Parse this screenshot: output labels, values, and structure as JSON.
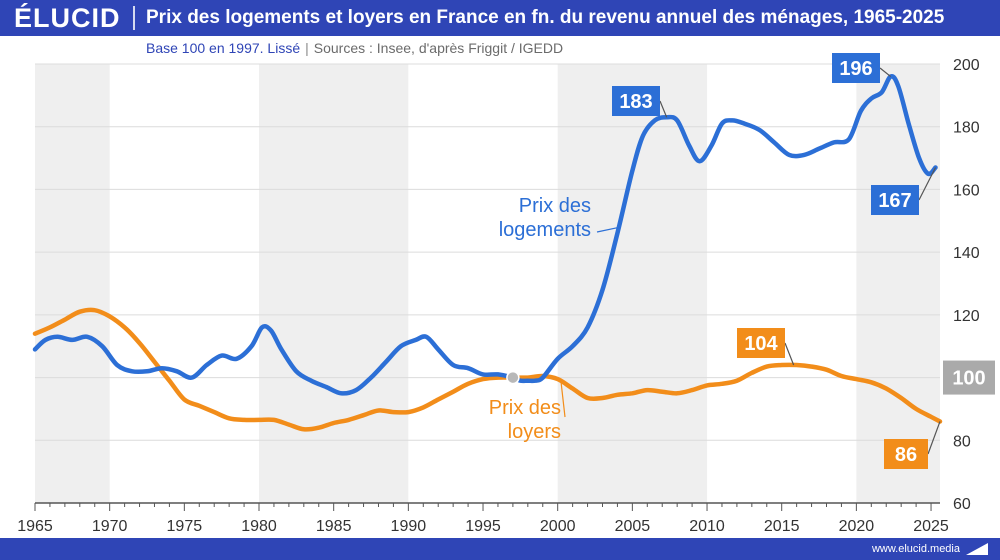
{
  "brand": {
    "logo": "ÉLUCID",
    "footer_url": "www.elucid.media"
  },
  "header": {
    "title": "Prix des logements et loyers en France en fn. du revenu annuel des ménages, 1965-2025",
    "subtitle_base": "Base 100 en 1997. Lissé",
    "subtitle_sep": "|",
    "subtitle_sources": "Sources : Insee, d'après Friggit / IGEDD"
  },
  "colors": {
    "header_bg": "#2f45b6",
    "logements": "#2c6fd6",
    "loyers": "#f28d1a",
    "reference": "#aaaaaa",
    "shade": "#efefef"
  },
  "chart_data": {
    "type": "line",
    "xlim": [
      1965,
      2025.6
    ],
    "ylim": [
      60,
      200
    ],
    "x_ticks": [
      "1965",
      "1970",
      "1975",
      "1980",
      "1985",
      "1990",
      "1995",
      "2000",
      "2005",
      "2010",
      "2015",
      "2020",
      "2025"
    ],
    "y_ticks": [
      "60",
      "80",
      "100",
      "120",
      "140",
      "160",
      "180",
      "200"
    ],
    "y_axis_position": "right",
    "shaded_bands": [
      [
        1965,
        1970
      ],
      [
        1980,
        1990
      ],
      [
        2000,
        2010
      ],
      [
        2020,
        2025.6
      ]
    ],
    "reference": {
      "x": 1997,
      "y": 100,
      "label": "100"
    },
    "series": [
      {
        "name": "Prix des logements",
        "label_lines": [
          "Prix des",
          "logements"
        ],
        "color": "#2c6fd6",
        "x": [
          1965,
          1965.7,
          1966.5,
          1967.5,
          1968.5,
          1969.5,
          1970.5,
          1971.5,
          1972.5,
          1973.5,
          1974.5,
          1975.5,
          1976.5,
          1977.5,
          1978.5,
          1979.5,
          1980.2,
          1980.8,
          1981.5,
          1982.5,
          1983.5,
          1984.5,
          1985.5,
          1986.5,
          1987.5,
          1988.5,
          1989.5,
          1990.5,
          1991.2,
          1992,
          1993,
          1994,
          1995,
          1996,
          1997,
          1997.5,
          1998,
          1998.5,
          1999,
          2000,
          2001,
          2002,
          2003,
          2004,
          2005,
          2005.7,
          2006.5,
          2007.3,
          2008,
          2008.8,
          2009.5,
          2010.3,
          2011,
          2011.7,
          2012.5,
          2013.5,
          2014.5,
          2015.5,
          2016.5,
          2017.5,
          2018.5,
          2019.5,
          2020.3,
          2021,
          2021.7,
          2022.3,
          2022.8,
          2023.5,
          2024.2,
          2024.8,
          2025.3
        ],
        "y": [
          109,
          112,
          113,
          112,
          113,
          110,
          104,
          102,
          102,
          103,
          102,
          100,
          104,
          107,
          106,
          110,
          116,
          115,
          109,
          102,
          99,
          97,
          95,
          96,
          100,
          105,
          110,
          112,
          113,
          109,
          104,
          103,
          101,
          101,
          100,
          99,
          99,
          99,
          100,
          106,
          110,
          116,
          128,
          146,
          166,
          177,
          182,
          183,
          182,
          174,
          169,
          174,
          181,
          182,
          181,
          179,
          175,
          171,
          171,
          173,
          175,
          176,
          185,
          189,
          191,
          196,
          193,
          181,
          170,
          165,
          167
        ]
      },
      {
        "name": "Prix des loyers",
        "label_lines": [
          "Prix des",
          "loyers"
        ],
        "color": "#f28d1a",
        "x": [
          1965,
          1966,
          1967,
          1968,
          1969,
          1970,
          1971,
          1972,
          1973,
          1974,
          1975,
          1976,
          1977,
          1978,
          1979,
          1980,
          1981,
          1982,
          1983,
          1984,
          1985,
          1986,
          1987,
          1988,
          1989,
          1990,
          1991,
          1992,
          1993,
          1994,
          1995,
          1996,
          1997,
          1998,
          1999,
          2000,
          2001,
          2002,
          2003,
          2004,
          2005,
          2006,
          2007,
          2008,
          2009,
          2010,
          2011,
          2012,
          2013,
          2014,
          2015,
          2016,
          2017,
          2018,
          2019,
          2020,
          2021,
          2022,
          2023,
          2024,
          2025,
          2025.6
        ],
        "y": [
          114,
          116,
          118.5,
          121,
          121.5,
          119.5,
          116,
          111,
          105,
          99,
          93,
          91,
          89,
          87,
          86.5,
          86.5,
          86.5,
          85,
          83.5,
          84,
          85.5,
          86.5,
          88,
          89.5,
          89,
          89,
          90.5,
          93,
          95.5,
          98,
          99.5,
          100,
          100,
          100,
          100.5,
          99.5,
          96.5,
          93.5,
          93.5,
          94.5,
          95,
          96,
          95.5,
          95,
          96,
          97.5,
          98,
          99,
          101.5,
          103.5,
          104,
          104,
          103.5,
          102.5,
          100.5,
          99.5,
          98.5,
          96.5,
          93.5,
          90,
          87.5,
          86
        ]
      }
    ],
    "callouts": [
      {
        "label": "183",
        "x": 2007.3,
        "y": 183,
        "series": 0
      },
      {
        "label": "196",
        "x": 2022.3,
        "y": 196,
        "series": 0
      },
      {
        "label": "167",
        "x": 2025.3,
        "y": 167,
        "series": 0
      },
      {
        "label": "104",
        "x": 2015.8,
        "y": 104,
        "series": 1
      },
      {
        "label": "86",
        "x": 2025.6,
        "y": 86,
        "series": 1
      }
    ]
  }
}
